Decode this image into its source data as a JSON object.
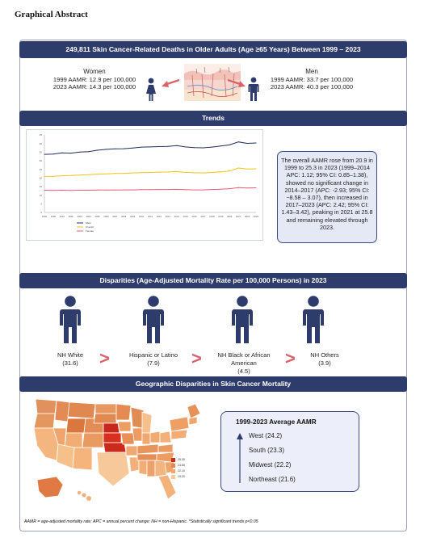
{
  "page_heading": "Graphical Abstract",
  "banner_title": "249,811 Skin Cancer-Related Deaths in Older Adults (Age ≥65 Years) Between 1999 – 2023",
  "women": {
    "label": "Women",
    "line1": "1999 AAMR: 12.9 per 100,000",
    "line2": "2023 AAMR: 14.3 per 100,000"
  },
  "men": {
    "label": "Men",
    "line1": "1999 AAMR: 33.7 per 100,000",
    "line2": "2023 AAMR: 40.3 per 100,000"
  },
  "trends_title": "Trends",
  "trend_note": "The overall AAMR rose from 20.9 in 1999 to 25.3 in 2023 (1999–2014 APC: 1.12; 95% CI: 0.85–1.38), showed no significant change in 2014–2017 (APC: -2.93; 95% CI: −8.58 – 3.07), then increased in 2017–2023 (APC: 2.42; 95% CI: 1.43–3.42), peaking in 2021 at 25.8 and remaining elevated through 2023.",
  "disparities_title": "Disparities (Age-Adjusted Mortality Rate per 100,000 Persons) in 2023",
  "groups": [
    {
      "name": "NH White",
      "value": "(31.6)"
    },
    {
      "name": "Hispanic or Latino",
      "value": "(7.9)"
    },
    {
      "name": "NH Black or African American",
      "value": "(4.5)"
    },
    {
      "name": "NH Others",
      "value": "(3.9)"
    }
  ],
  "gt_symbol": ">",
  "geo_title": "Geographic Disparities in Skin Cancer Mortality",
  "region_box": {
    "title": "1999-2023 Average AAMR",
    "items": [
      "West (24.2)",
      "South (23.3)",
      "Midwest (22.2)",
      "Northeast (21.6)"
    ]
  },
  "map_legend": [
    "25.30",
    "23.60",
    "22.10",
    "19.20"
  ],
  "footnote": "AAMR = age-adjusted mortality rate; APC = annual percent change; NH = non-Hispanic. *Statistically significant trends p<0.05",
  "colors": {
    "band": "#2e3c6c",
    "men_series": "#1f2f5a",
    "overall_series": "#f0c419",
    "women_series": "#e85d75",
    "arrow": "#d9636b"
  },
  "chart_data": {
    "type": "line",
    "x": [
      1999,
      2000,
      2001,
      2002,
      2003,
      2004,
      2005,
      2006,
      2007,
      2008,
      2009,
      2010,
      2011,
      2012,
      2013,
      2014,
      2015,
      2016,
      2017,
      2018,
      2019,
      2020,
      2021,
      2022,
      2023
    ],
    "series": [
      {
        "name": "Male",
        "values": [
          33.7,
          33.9,
          34.6,
          34.4,
          35.0,
          35.3,
          36.1,
          36.6,
          36.9,
          37.0,
          37.4,
          37.9,
          38.0,
          38.2,
          38.3,
          38.8,
          38.0,
          37.6,
          37.5,
          37.9,
          38.6,
          39.2,
          40.9,
          40.1,
          40.3
        ]
      },
      {
        "name": "Overall",
        "values": [
          20.9,
          21.0,
          21.3,
          21.4,
          21.7,
          21.9,
          22.2,
          22.4,
          22.6,
          22.7,
          22.9,
          23.1,
          23.2,
          23.4,
          23.5,
          23.7,
          23.2,
          23.0,
          22.9,
          23.2,
          23.6,
          24.0,
          25.8,
          25.2,
          25.3
        ]
      },
      {
        "name": "Female",
        "values": [
          12.9,
          12.8,
          12.9,
          12.8,
          12.9,
          12.9,
          13.0,
          13.0,
          13.0,
          13.1,
          13.1,
          13.2,
          13.2,
          13.3,
          13.3,
          13.4,
          13.2,
          13.1,
          13.1,
          13.3,
          13.5,
          13.8,
          14.4,
          14.2,
          14.3
        ]
      }
    ],
    "ylim": [
      0,
      45
    ]
  }
}
